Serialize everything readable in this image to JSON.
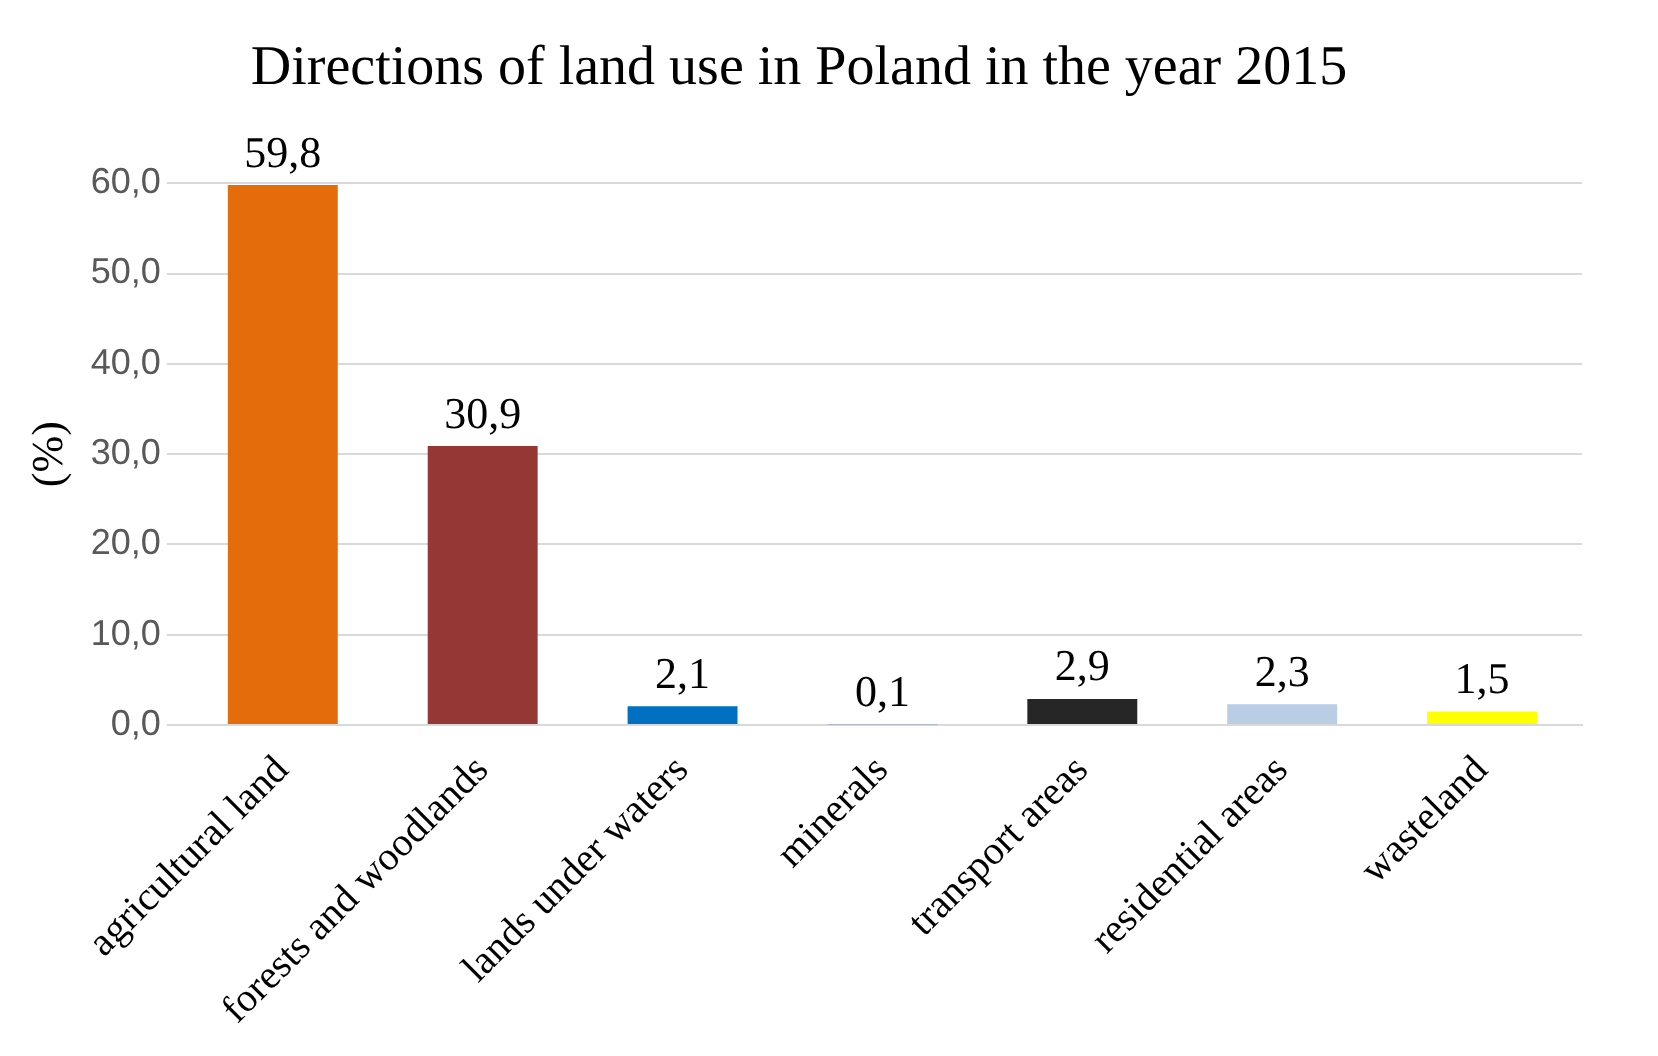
{
  "chart_data": {
    "type": "bar",
    "title": "Directions of land use in Poland in the year 2015",
    "ylabel": "(%)",
    "categories": [
      "agricultural land",
      "forests and woodlands",
      "lands under waters",
      "minerals",
      "transport areas",
      "residential areas",
      "wasteland"
    ],
    "values": [
      59.8,
      30.9,
      2.1,
      0.1,
      2.9,
      2.3,
      1.5
    ],
    "value_labels": [
      "59,8",
      "30,9",
      "2,1",
      "0,1",
      "2,9",
      "2,3",
      "1,5"
    ],
    "colors": [
      "#e46c0a",
      "#953735",
      "#0070c0",
      "#2e5c8a",
      "#262626",
      "#b9cde5",
      "#ffff00"
    ],
    "ylim": [
      0,
      60
    ],
    "yticks": [
      {
        "value": 0,
        "label": "0,0"
      },
      {
        "value": 10,
        "label": "10,0"
      },
      {
        "value": 20,
        "label": "20,0"
      },
      {
        "value": 30,
        "label": "30,0"
      },
      {
        "value": 40,
        "label": "40,0"
      },
      {
        "value": 50,
        "label": "50,0"
      },
      {
        "value": 60,
        "label": "60,0"
      }
    ],
    "grid": "y",
    "legend": false
  }
}
